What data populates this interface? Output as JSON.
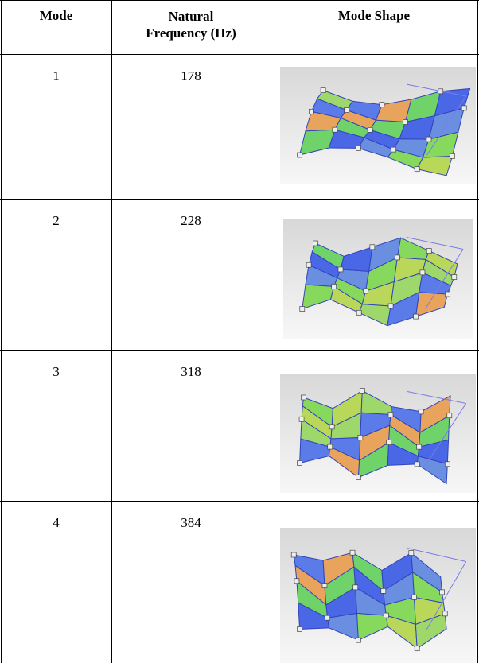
{
  "table": {
    "header": [
      "Mode",
      "Natural Frequency (Hz)",
      "Mode Shape"
    ],
    "rows": [
      [
        "1",
        "178"
      ],
      [
        "2",
        "228"
      ],
      [
        "3",
        "318"
      ],
      [
        "4",
        "384"
      ]
    ]
  }
}
